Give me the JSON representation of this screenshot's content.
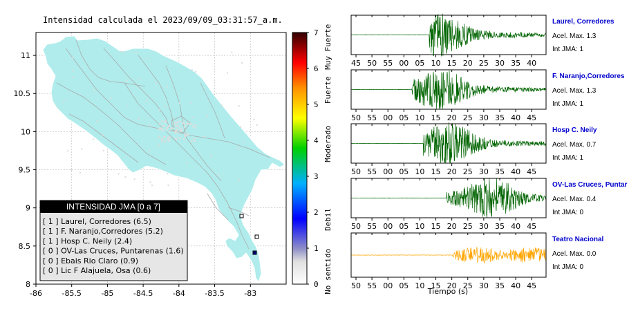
{
  "map": {
    "title": "Intensidad calculada el 2023/09/09_03:31:57_a.m.",
    "x_ticks": [
      "-86",
      "-85.5",
      "-85",
      "-84.5",
      "-84",
      "-83.5",
      "-83"
    ],
    "y_ticks": [
      "11",
      "10.5",
      "10",
      "9.5",
      "9",
      "8.5",
      "8"
    ],
    "x_values": [
      -86,
      -85.5,
      -85,
      -84.5,
      -84,
      -83.5,
      -83
    ],
    "y_values": [
      11,
      10.5,
      10,
      9.5,
      9,
      8.5,
      8
    ],
    "xlim": [
      -86,
      -82.5
    ],
    "ylim": [
      8,
      11.3
    ],
    "land_color": "#b0ecec",
    "road_color": "#aaaaaa",
    "legend": {
      "title": "INTENSIDAD JMA [0 a 7]",
      "entries": [
        "[ 1 ]  Laurel, Corredores (6.5)",
        "[ 1 ]  F. Naranjo,Corredores (5.2)",
        "[ 1 ]  Hosp C. Neily (2.4)",
        "[ 0 ]  OV-Las Cruces, Puntarenas (1.6)",
        "[ 0 ]  Ebais Rio Claro (0.9)",
        "[ 0 ]  Lic F Alajuela, Osa (0.6)"
      ]
    }
  },
  "colorbar": {
    "tick_labels": [
      "0",
      "1",
      "2",
      "3",
      "4",
      "5",
      "6",
      "7"
    ],
    "category_labels": [
      "No sentido",
      "Debil",
      "Moderado",
      "Fuerte",
      "Muy Fuerte"
    ],
    "colors": [
      "#ffffff",
      "#8080d0",
      "#0000ff",
      "#00c0ff",
      "#00e000",
      "#ffff00",
      "#ff8000",
      "#ff0000",
      "#200000"
    ]
  },
  "seismograms": {
    "xlabel": "Tiempo (s)",
    "panels": [
      {
        "name": "Laurel, Corredores",
        "accel": "Acel. Max. 1.3",
        "jma": "Int JMA: 1",
        "color": "#006400",
        "ticks": [
          "45",
          "50",
          "55",
          "00",
          "05",
          "10",
          "15",
          "20",
          "25",
          "30",
          "35",
          "40"
        ],
        "onset": 0.4,
        "peak": 0.45
      },
      {
        "name": "F. Naranjo,Corredores",
        "accel": "Acel. Max. 1.3",
        "jma": "Int JMA: 1",
        "color": "#006400",
        "ticks": [
          "50",
          "55",
          "00",
          "05",
          "10",
          "15",
          "20",
          "25",
          "30",
          "35",
          "40",
          "45"
        ],
        "onset": 0.31,
        "peak": 0.46
      },
      {
        "name": "Hosp C. Neily",
        "accel": "Acel. Max. 0.7",
        "jma": "Int JMA: 1",
        "color": "#006400",
        "ticks": [
          "50",
          "55",
          "00",
          "05",
          "10",
          "15",
          "20",
          "25",
          "30",
          "35",
          "40",
          "45"
        ],
        "onset": 0.37,
        "peak": 0.5
      },
      {
        "name": "OV-Las Cruces, Puntar",
        "accel": "Acel. Max. 0.4",
        "jma": "Int JMA: 0",
        "color": "#006400",
        "ticks": [
          "50",
          "55",
          "00",
          "05",
          "10",
          "15",
          "20",
          "25",
          "30",
          "35",
          "40",
          "45"
        ],
        "onset": 0.49,
        "peak": 0.72
      },
      {
        "name": "Teatro Nacional",
        "accel": "Acel. Max. 0.0",
        "jma": "Int JMA: 0",
        "color": "#ffa500",
        "ticks": [
          "50",
          "55",
          "00",
          "05",
          "10",
          "15",
          "20",
          "25",
          "30",
          "35",
          "40",
          "45"
        ],
        "onset": 0.52,
        "peak": 0.7
      }
    ]
  }
}
